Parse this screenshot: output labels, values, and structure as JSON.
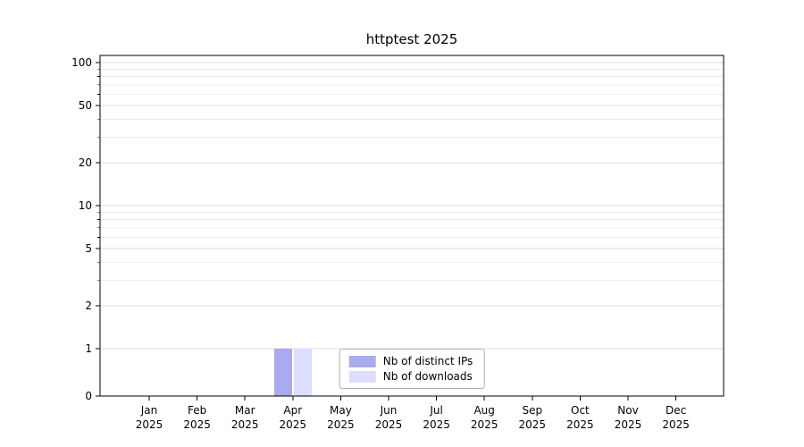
{
  "chart_data": {
    "type": "bar",
    "title": "httptest 2025",
    "scale": "symlog",
    "grid": true,
    "legend_position": "lower center",
    "x": [
      "Jan",
      "Feb",
      "Mar",
      "Apr",
      "May",
      "Jun",
      "Jul",
      "Aug",
      "Sep",
      "Oct",
      "Nov",
      "Dec"
    ],
    "x_year": "2025",
    "yticks": [
      0,
      1,
      2,
      5,
      10,
      20,
      50,
      100
    ],
    "ylim": [
      0,
      100
    ],
    "series": [
      {
        "name": "Nb of distinct IPs",
        "color": "#aaaaee",
        "values": [
          0,
          0,
          0,
          1,
          0,
          0,
          0,
          0,
          0,
          0,
          0,
          0
        ]
      },
      {
        "name": "Nb of downloads",
        "color": "#ddddff",
        "values": [
          0,
          0,
          0,
          1,
          0,
          0,
          0,
          0,
          0,
          0,
          0,
          0
        ]
      }
    ]
  }
}
